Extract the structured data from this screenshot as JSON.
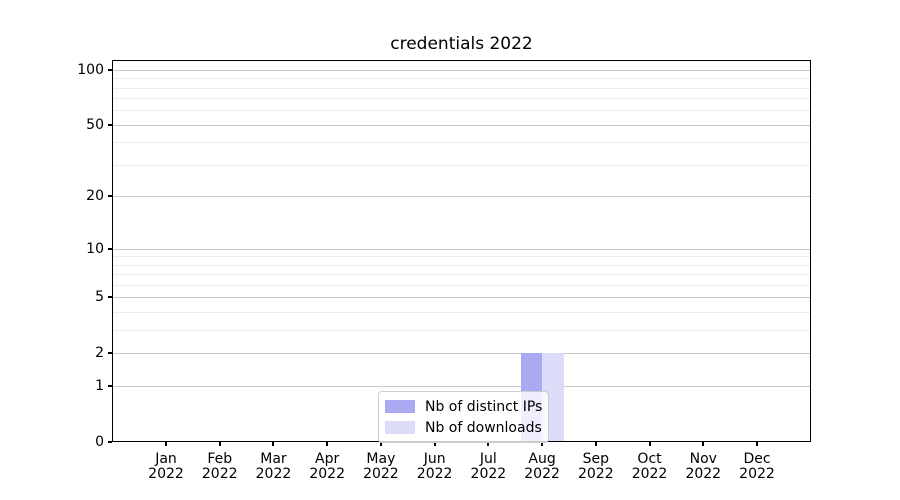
{
  "title": "credentials 2022",
  "chart_data": {
    "type": "bar",
    "title": "credentials 2022",
    "x_tick_months": [
      "Jan",
      "Feb",
      "Mar",
      "Apr",
      "May",
      "Jun",
      "Jul",
      "Aug",
      "Sep",
      "Oct",
      "Nov",
      "Dec"
    ],
    "x_tick_year": "2022",
    "series": [
      {
        "name": "Nb of distinct IPs",
        "color": "#aaaaf2",
        "values": [
          0,
          0,
          0,
          0,
          0,
          0,
          0,
          2,
          0,
          0,
          0,
          0
        ]
      },
      {
        "name": "Nb of downloads",
        "color": "#dcdcf8",
        "values": [
          0,
          0,
          0,
          0,
          0,
          0,
          0,
          2,
          0,
          0,
          0,
          0
        ]
      }
    ],
    "y_scale": "log1p",
    "ylim": [
      0,
      113
    ],
    "y_major_ticks": [
      0,
      1,
      2,
      5,
      10,
      20,
      50,
      100
    ],
    "y_minor_gridlines": [
      3,
      4,
      6,
      7,
      8,
      9,
      30,
      40,
      60,
      70,
      80,
      90
    ],
    "grid": true,
    "legend_position": "lower center",
    "colors": {
      "grid_major": "#c9c9c9",
      "grid_minor": "#ececec",
      "axis": "#000000",
      "background": "#ffffff",
      "legend_border": "#cccccc"
    }
  }
}
